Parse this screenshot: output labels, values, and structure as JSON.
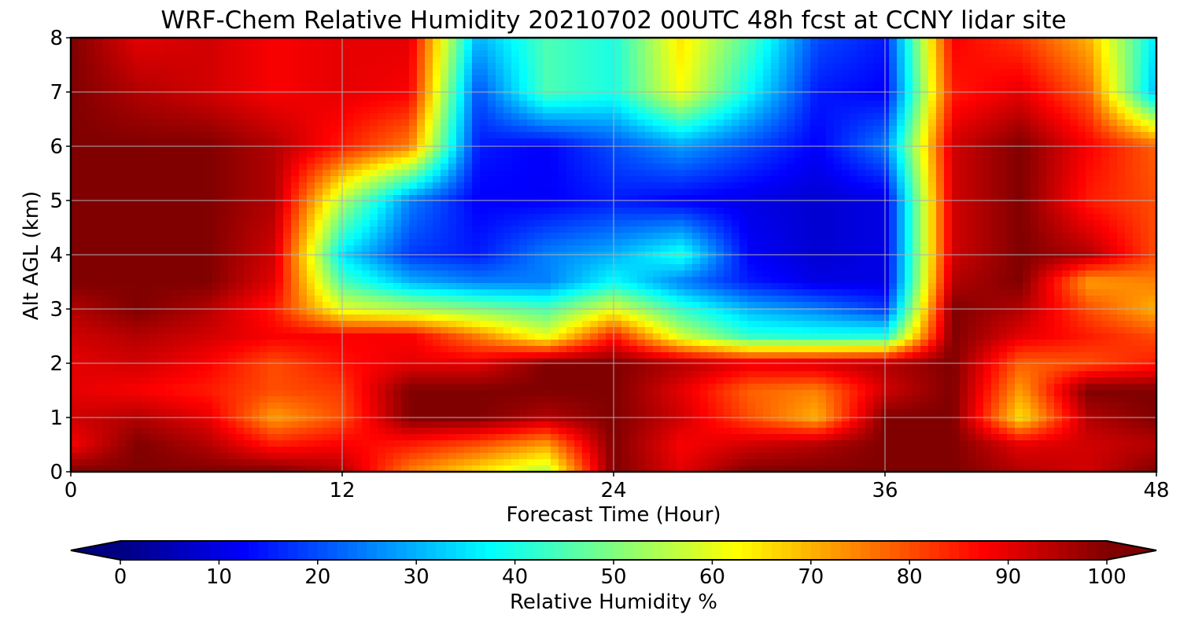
{
  "chart_data": {
    "type": "heatmap",
    "title": "WRF-Chem Relative Humidity 20210702 00UTC 48h fcst at CCNY lidar site",
    "xlabel": "Forecast Time (Hour)",
    "ylabel": "Alt AGL (km)",
    "colorbar_label": "Relative Humidity %",
    "x_ticks": [
      "0",
      "12",
      "24",
      "36",
      "48"
    ],
    "y_ticks": [
      "0",
      "1",
      "2",
      "3",
      "4",
      "5",
      "6",
      "7",
      "8"
    ],
    "colorbar_ticks": [
      "0",
      "10",
      "20",
      "30",
      "40",
      "50",
      "60",
      "70",
      "80",
      "90",
      "100"
    ],
    "xlim": [
      0,
      48
    ],
    "ylim": [
      0,
      8
    ],
    "clim": [
      0,
      100
    ],
    "colormap": "jet",
    "grid": true,
    "x": [
      0,
      3,
      6,
      9,
      12,
      15,
      18,
      21,
      24,
      27,
      30,
      33,
      36,
      39,
      42,
      45,
      48
    ],
    "y": [
      0,
      0.5,
      1,
      1.5,
      2,
      2.5,
      3,
      3.5,
      4,
      5,
      6,
      7,
      8
    ],
    "z": [
      [
        100,
        100,
        100,
        100,
        95,
        75,
        65,
        55,
        100,
        90,
        100,
        100,
        100,
        100,
        95,
        92,
        100
      ],
      [
        88,
        100,
        95,
        85,
        88,
        85,
        80,
        72,
        100,
        88,
        92,
        95,
        100,
        100,
        90,
        92,
        95
      ],
      [
        92,
        95,
        90,
        72,
        80,
        100,
        100,
        95,
        100,
        92,
        80,
        70,
        100,
        100,
        65,
        95,
        100
      ],
      [
        90,
        88,
        85,
        80,
        82,
        100,
        100,
        100,
        100,
        90,
        78,
        75,
        92,
        100,
        72,
        100,
        100
      ],
      [
        90,
        92,
        88,
        80,
        86,
        90,
        90,
        100,
        100,
        95,
        90,
        92,
        95,
        100,
        78,
        80,
        85
      ],
      [
        92,
        95,
        92,
        88,
        88,
        88,
        75,
        60,
        85,
        58,
        42,
        40,
        40,
        100,
        90,
        85,
        80
      ],
      [
        95,
        100,
        95,
        85,
        60,
        55,
        50,
        45,
        60,
        42,
        30,
        25,
        18,
        100,
        95,
        80,
        70
      ],
      [
        100,
        100,
        100,
        90,
        45,
        30,
        25,
        25,
        38,
        25,
        15,
        10,
        10,
        95,
        100,
        72,
        75
      ],
      [
        100,
        100,
        100,
        92,
        35,
        18,
        15,
        25,
        30,
        40,
        12,
        8,
        10,
        92,
        100,
        95,
        80
      ],
      [
        100,
        100,
        100,
        95,
        55,
        25,
        12,
        12,
        15,
        12,
        10,
        8,
        10,
        92,
        100,
        85,
        80
      ],
      [
        100,
        100,
        100,
        95,
        85,
        75,
        15,
        12,
        20,
        28,
        20,
        12,
        25,
        92,
        100,
        88,
        78
      ],
      [
        100,
        95,
        92,
        88,
        90,
        88,
        20,
        45,
        40,
        62,
        38,
        15,
        12,
        85,
        90,
        78,
        30
      ],
      [
        100,
        90,
        92,
        88,
        90,
        90,
        30,
        45,
        40,
        65,
        45,
        20,
        15,
        88,
        82,
        70,
        35
      ]
    ]
  }
}
